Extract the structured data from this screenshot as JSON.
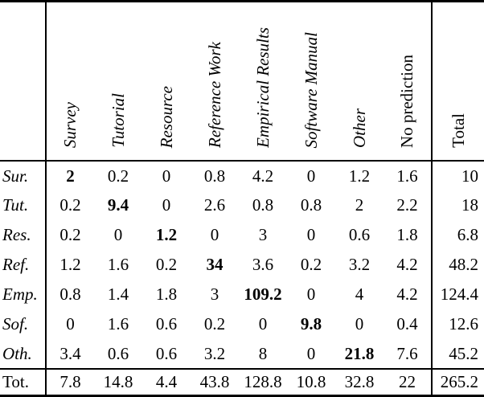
{
  "colors": {
    "background": "#ffffff",
    "text": "#000000",
    "rule": "#000000"
  },
  "table": {
    "columns": [
      {
        "label": "Survey",
        "italic": true
      },
      {
        "label": "Tutorial",
        "italic": true
      },
      {
        "label": "Resource",
        "italic": true
      },
      {
        "label": "Reference Work",
        "italic": true
      },
      {
        "label": "Empirical Results",
        "italic": true
      },
      {
        "label": "Software Manual",
        "italic": true
      },
      {
        "label": "Other",
        "italic": true
      },
      {
        "label": "No prediction",
        "italic": false
      }
    ],
    "total_column_label": "Total",
    "rows": [
      {
        "label": "Sur.",
        "bold_index": 0,
        "values": [
          "2",
          "0.2",
          "0",
          "0.8",
          "4.2",
          "0",
          "1.2",
          "1.6"
        ],
        "total": "10"
      },
      {
        "label": "Tut.",
        "bold_index": 1,
        "values": [
          "0.2",
          "9.4",
          "0",
          "2.6",
          "0.8",
          "0.8",
          "2",
          "2.2"
        ],
        "total": "18"
      },
      {
        "label": "Res.",
        "bold_index": 2,
        "values": [
          "0.2",
          "0",
          "1.2",
          "0",
          "3",
          "0",
          "0.6",
          "1.8"
        ],
        "total": "6.8"
      },
      {
        "label": "Ref.",
        "bold_index": 3,
        "values": [
          "1.2",
          "1.6",
          "0.2",
          "34",
          "3.6",
          "0.2",
          "3.2",
          "4.2"
        ],
        "total": "48.2"
      },
      {
        "label": "Emp.",
        "bold_index": 4,
        "values": [
          "0.8",
          "1.4",
          "1.8",
          "3",
          "109.2",
          "0",
          "4",
          "4.2"
        ],
        "total": "124.4"
      },
      {
        "label": "Sof.",
        "bold_index": 5,
        "values": [
          "0",
          "1.6",
          "0.6",
          "0.2",
          "0",
          "9.8",
          "0",
          "0.4"
        ],
        "total": "12.6"
      },
      {
        "label": "Oth.",
        "bold_index": 6,
        "values": [
          "3.4",
          "0.6",
          "0.6",
          "3.2",
          "8",
          "0",
          "21.8",
          "7.6"
        ],
        "total": "45.2"
      }
    ],
    "totals_row": {
      "label": "Tot.",
      "values": [
        "7.8",
        "14.8",
        "4.4",
        "43.8",
        "128.8",
        "10.8",
        "32.8",
        "22"
      ],
      "total": "265.2"
    }
  }
}
